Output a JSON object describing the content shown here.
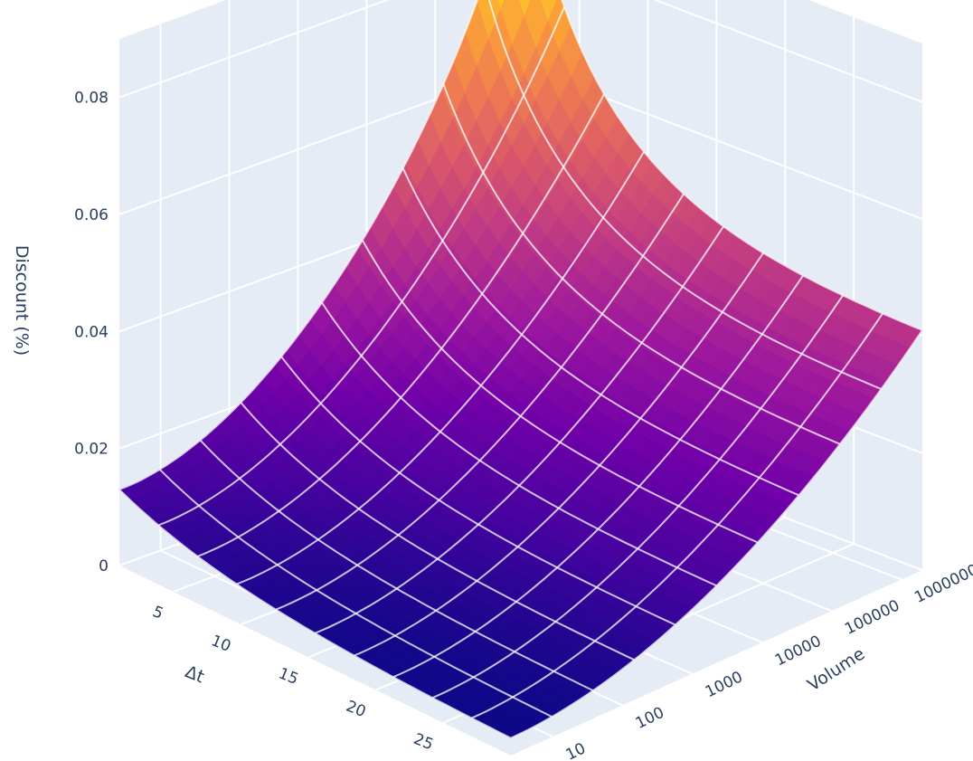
{
  "chart_data": {
    "type": "surface",
    "title": "",
    "xlabel": "Δt",
    "ylabel": "Volume",
    "zlabel": "Discount (%)",
    "x_ticks": [
      "5",
      "10",
      "15",
      "20",
      "25"
    ],
    "y_ticks": [
      "10",
      "100",
      "1000",
      "10000",
      "100000",
      "1000000"
    ],
    "z_ticks": [
      "0",
      "0.02",
      "0.04",
      "0.06",
      "0.08"
    ],
    "x_range": [
      1,
      30
    ],
    "y_range_log10": [
      0.4,
      6.3
    ],
    "z_range": [
      0,
      0.09
    ],
    "grid": true,
    "colorscale": "plasma",
    "colorbar": false,
    "surface_points": [
      {
        "dt": 1,
        "volume": 2.5,
        "discount": 0.013
      },
      {
        "dt": 1,
        "volume": 2000000,
        "discount": 0.085
      },
      {
        "dt": 30,
        "volume": 2.5,
        "discount": 0.003
      },
      {
        "dt": 30,
        "volume": 2000000,
        "discount": 0.041
      }
    ]
  },
  "colors": {
    "scene_background": "#e5ecf6",
    "gridline": "#ffffff",
    "tick_text": "#2a3f5f",
    "plasma": [
      "#0d0887",
      "#46039f",
      "#7201a8",
      "#9c179e",
      "#bd3786",
      "#d8576b",
      "#ed7953",
      "#fb9f3a",
      "#fdca26",
      "#f0f921"
    ]
  }
}
